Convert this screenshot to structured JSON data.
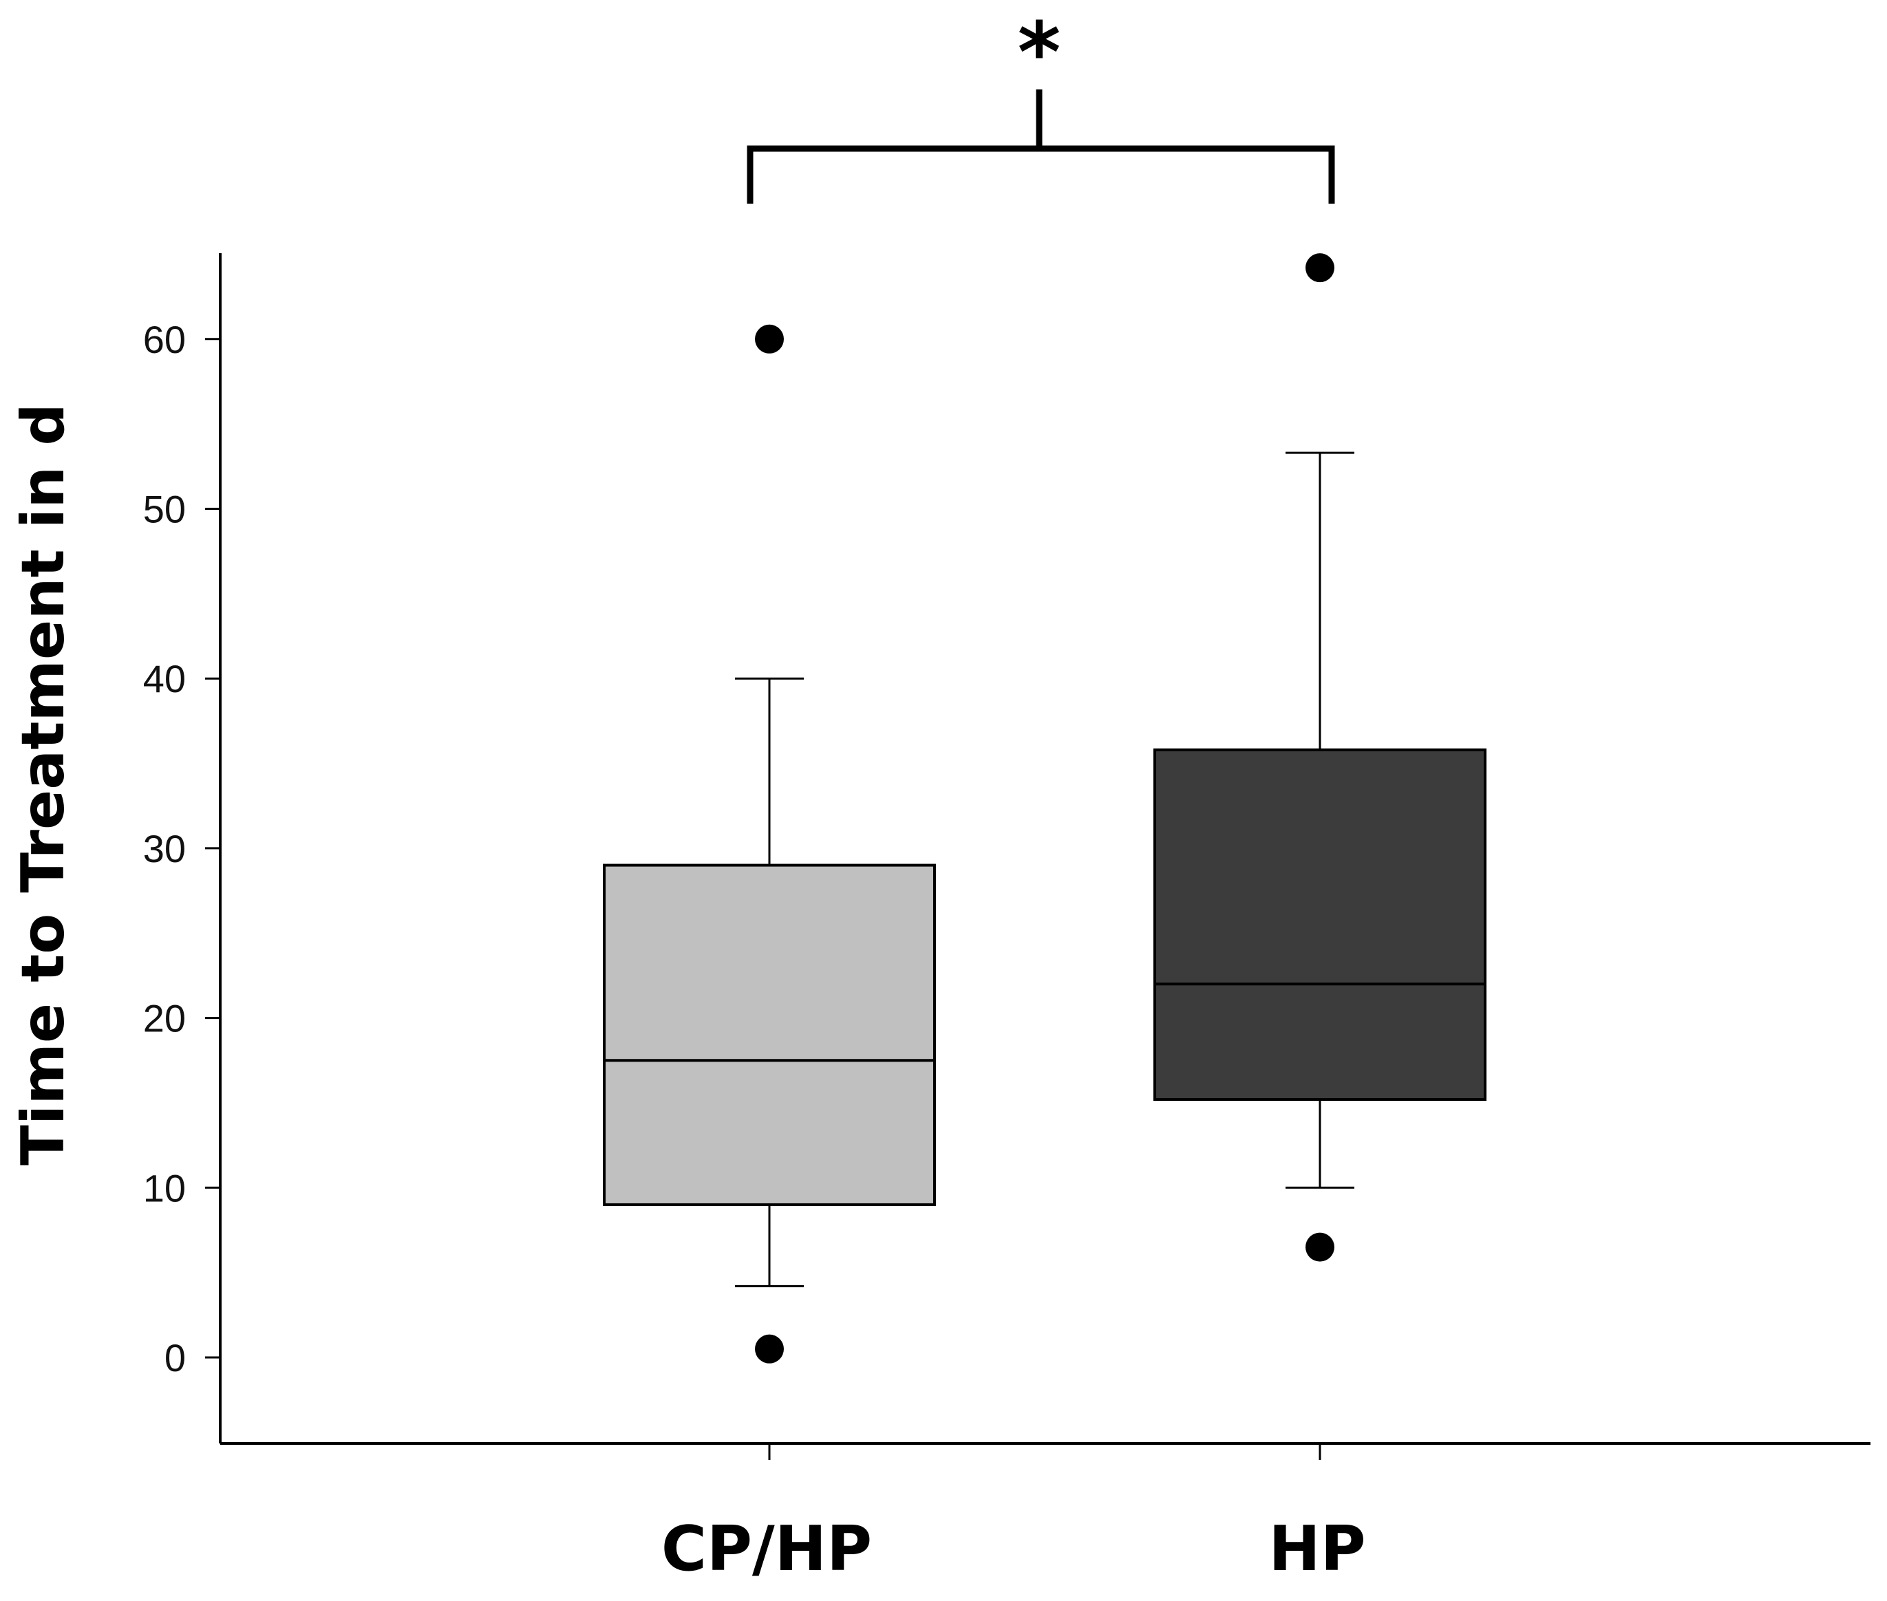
{
  "chart_data": {
    "type": "box",
    "ylabel": "Time to Treatment in d",
    "xlabel": "",
    "ylim": [
      -5,
      65
    ],
    "yticks": [
      0,
      10,
      20,
      30,
      40,
      50,
      60
    ],
    "grid": false,
    "categories": [
      "CP/HP",
      "HP"
    ],
    "boxes": [
      {
        "category": "CP/HP",
        "whisker_low": 4.2,
        "q1": 9,
        "median": 17.5,
        "q3": 29,
        "whisker_high": 40,
        "outliers": [
          0.5,
          60
        ],
        "color": "#c0c0c0"
      },
      {
        "category": "HP",
        "whisker_low": 10,
        "q1": 15.2,
        "median": 22,
        "q3": 35.8,
        "whisker_high": 53.3,
        "outliers": [
          6.5,
          64.2
        ],
        "color": "#3c3c3c"
      }
    ],
    "significance": {
      "between": [
        "CP/HP",
        "HP"
      ],
      "label": "*"
    }
  }
}
